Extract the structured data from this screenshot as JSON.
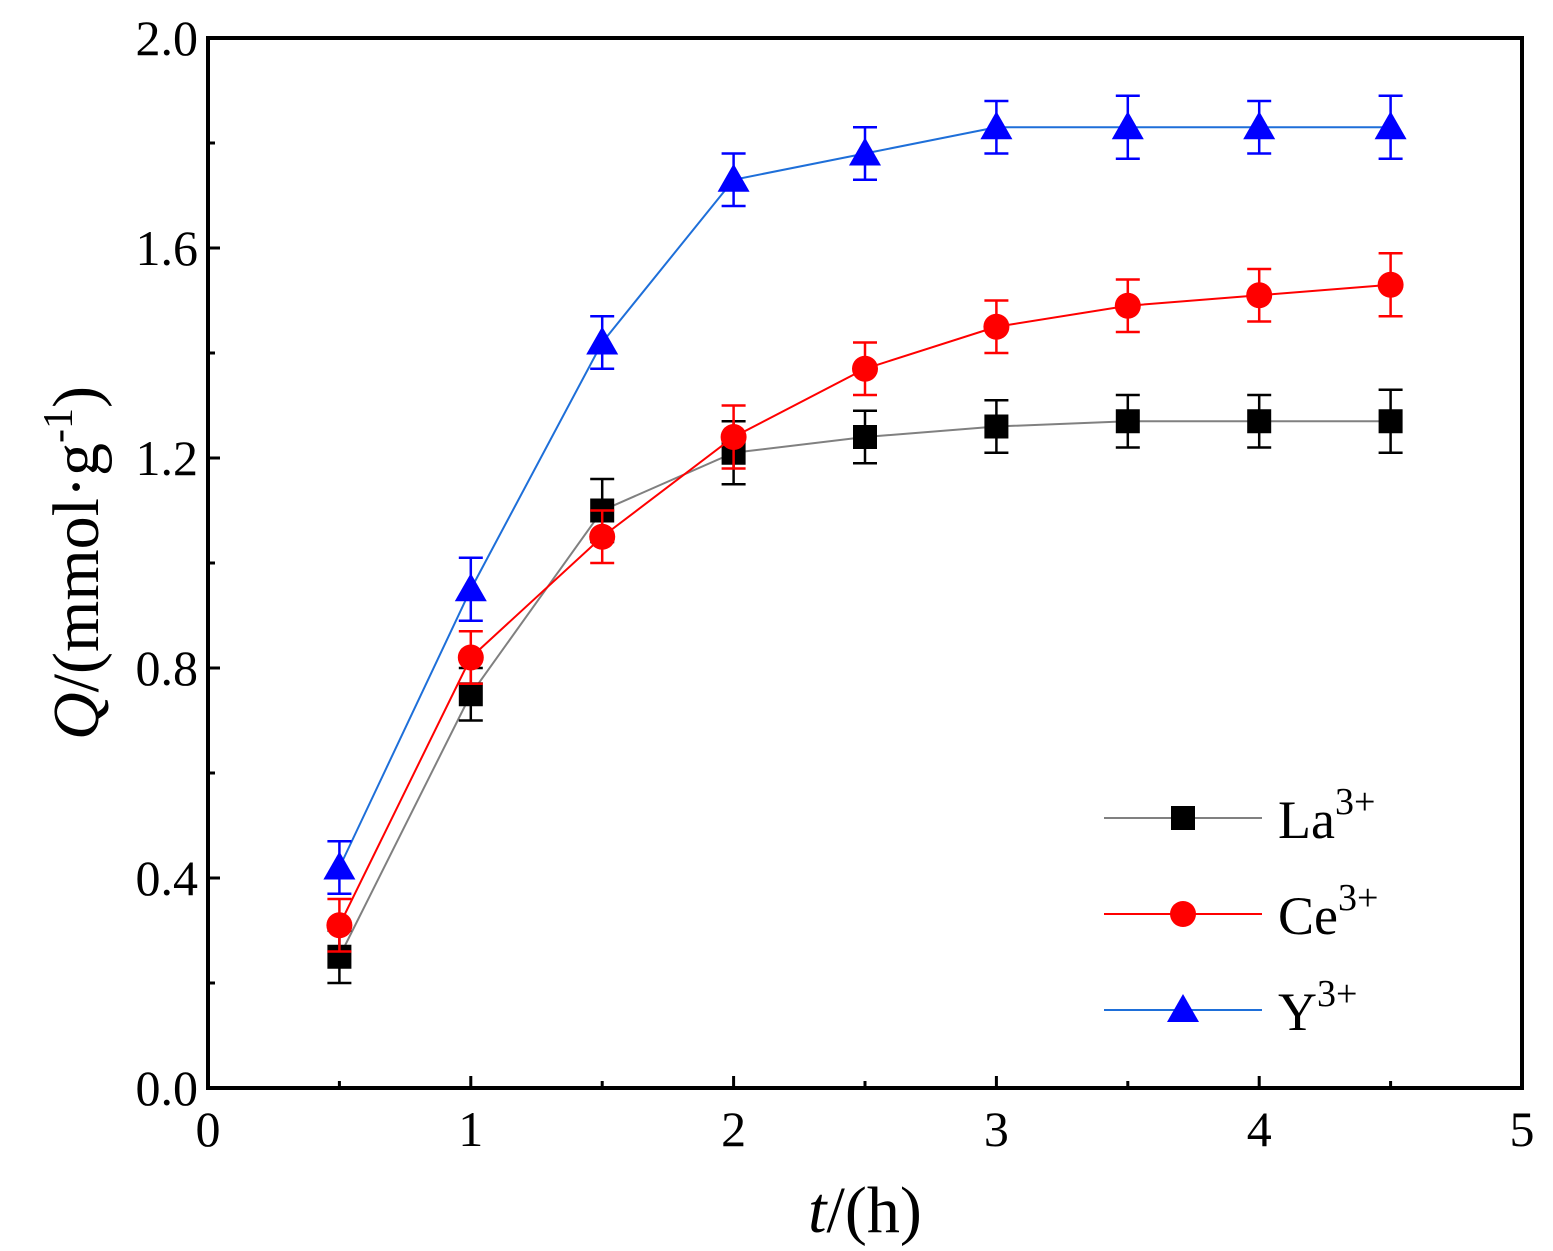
{
  "chart_data": {
    "type": "line",
    "title": "",
    "xlabel": {
      "var": "t",
      "rest": "/(h)"
    },
    "ylabel": {
      "var": "Q",
      "rest": "/(mmol·g",
      "sup": "-1",
      "close": ")"
    },
    "xlim": [
      0,
      5
    ],
    "ylim": [
      0,
      2.0
    ],
    "xticks": [
      0,
      1,
      2,
      3,
      4,
      5
    ],
    "xtick_labels": [
      "0",
      "1",
      "2",
      "3",
      "4",
      "5"
    ],
    "yticks": [
      0,
      0.4,
      0.8,
      1.2,
      1.6,
      2.0
    ],
    "ytick_labels": [
      "0.0",
      "0.4",
      "0.8",
      "1.2",
      "1.6",
      "2.0"
    ],
    "grid": false,
    "legend_position": "bottom-right",
    "x": [
      0.5,
      1.0,
      1.5,
      2.0,
      2.5,
      3.0,
      3.5,
      4.0,
      4.5
    ],
    "series": [
      {
        "name": "La",
        "sup": "3+",
        "marker": "square",
        "color": "#000000",
        "line_color": "#808080",
        "values": [
          0.25,
          0.75,
          1.1,
          1.21,
          1.24,
          1.26,
          1.27,
          1.27,
          1.27
        ],
        "errors": [
          0.05,
          0.05,
          0.06,
          0.06,
          0.05,
          0.05,
          0.05,
          0.05,
          0.06
        ]
      },
      {
        "name": "Ce",
        "sup": "3+",
        "marker": "circle",
        "color": "#ff0000",
        "line_color": "#ff0000",
        "values": [
          0.31,
          0.82,
          1.05,
          1.24,
          1.37,
          1.45,
          1.49,
          1.51,
          1.53
        ],
        "errors": [
          0.05,
          0.05,
          0.05,
          0.06,
          0.05,
          0.05,
          0.05,
          0.05,
          0.06
        ]
      },
      {
        "name": "Y",
        "sup": "3+",
        "marker": "triangle",
        "color": "#0000ff",
        "line_color": "#1e6fd9",
        "values": [
          0.42,
          0.95,
          1.42,
          1.73,
          1.78,
          1.83,
          1.83,
          1.83,
          1.83
        ],
        "errors": [
          0.05,
          0.06,
          0.05,
          0.05,
          0.05,
          0.05,
          0.06,
          0.05,
          0.06
        ]
      }
    ]
  }
}
